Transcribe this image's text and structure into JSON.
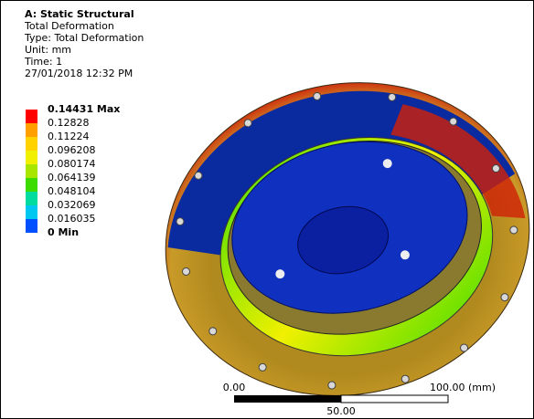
{
  "header": {
    "title": "A: Static Structural",
    "lines": [
      "Total Deformation",
      "Type: Total Deformation",
      "Unit: mm",
      "Time: 1",
      "27/01/2018 12:32 PM"
    ]
  },
  "legend": {
    "labels": [
      "0.14431 Max",
      "0.12828",
      "0.11224",
      "0.096208",
      "0.080174",
      "0.064139",
      "0.048104",
      "0.032069",
      "0.016035",
      "0 Min"
    ],
    "colors": [
      "#ff0000",
      "#ffa000",
      "#ffd200",
      "#f0f000",
      "#a8e600",
      "#3cdc00",
      "#00dca0",
      "#00c8f0",
      "#0050ff"
    ]
  },
  "scale_bar": {
    "start": "0.00",
    "end": "100.00 (mm)",
    "middle": "50.00"
  }
}
